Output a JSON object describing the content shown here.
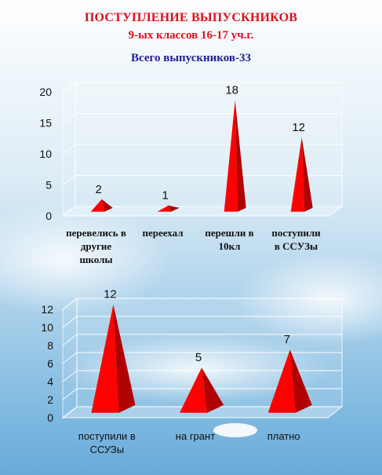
{
  "header": {
    "title": "ПОСТУПЛЕНИЕ ВЫПУСКНИКОВ",
    "subtitle": "9-ых классов  16-17 уч.г.",
    "total": "Всего выпускников-33"
  },
  "colors": {
    "cone": "#ff0000",
    "cone_shade": "#b00000",
    "title_red": "#e0101a",
    "title_blue": "#1e1e9a"
  },
  "chart_data": [
    {
      "type": "bar",
      "bar_shape": "3d-cone",
      "categories": [
        "перевелись в\nдругие\nшколы",
        "переехал",
        "перешли в\n10кл",
        "поступили\nв ССУЗы"
      ],
      "values": [
        2,
        1,
        18,
        12
      ],
      "ylim": [
        0,
        20
      ],
      "yticks": [
        0,
        5,
        10,
        15,
        20
      ],
      "grid": true,
      "legend": "none",
      "data_labels": true
    },
    {
      "type": "bar",
      "bar_shape": "3d-cone",
      "categories": [
        "поступили в\nССУЗы",
        "на грант",
        "платно"
      ],
      "values": [
        12,
        5,
        7
      ],
      "ylim": [
        0,
        12
      ],
      "yticks": [
        0,
        2,
        4,
        6,
        8,
        10,
        12
      ],
      "grid": true,
      "legend": "none",
      "data_labels": true
    }
  ]
}
